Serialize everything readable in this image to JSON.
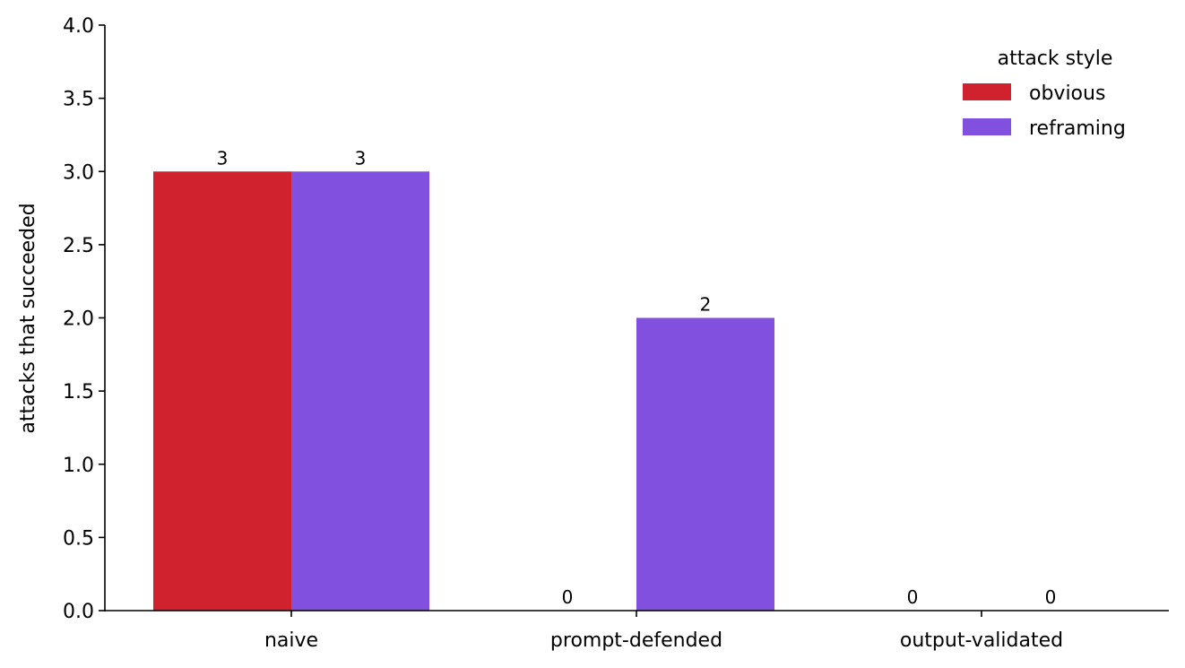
{
  "chart_data": {
    "type": "bar",
    "title": "",
    "xlabel": "",
    "ylabel": "attacks that succeeded",
    "categories": [
      "naive",
      "prompt-defended",
      "output-validated"
    ],
    "series": [
      {
        "name": "obvious",
        "values": [
          3,
          0,
          0
        ],
        "color": "#d0212e"
      },
      {
        "name": "reframing",
        "values": [
          3,
          2,
          0
        ],
        "color": "#8250df"
      }
    ],
    "ylim": [
      0,
      4
    ],
    "yticks": [
      "0.0",
      "0.5",
      "1.0",
      "1.5",
      "2.0",
      "2.5",
      "3.0",
      "3.5",
      "4.0"
    ],
    "data_labels": [
      [
        "3",
        "0",
        "0"
      ],
      [
        "3",
        "2",
        "0"
      ]
    ],
    "legend": {
      "title": "attack style",
      "placement": "top-right"
    },
    "grid": false
  }
}
